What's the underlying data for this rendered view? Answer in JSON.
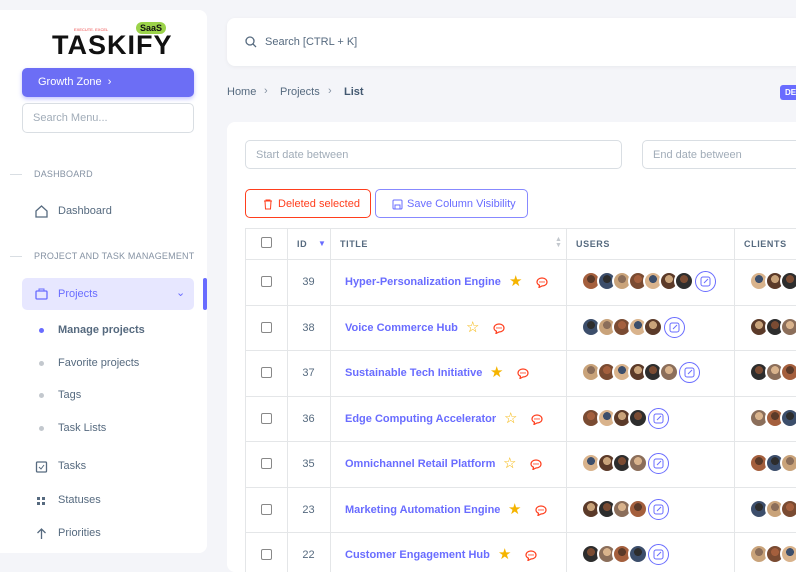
{
  "logo": {
    "name": "TASKIFY",
    "badge": "SaaS",
    "tagline": "EXECUTE. EXCEL"
  },
  "sidebar": {
    "workspace": "Growth Zone",
    "search_placeholder": "Search Menu...",
    "dashboard": {
      "title": "DASHBOARD",
      "item": "Dashboard"
    },
    "pm": {
      "title": "PROJECT AND TASK MANAGEMENT",
      "projects": "Projects",
      "children": [
        "Manage projects",
        "Favorite projects",
        "Tags",
        "Task Lists"
      ],
      "items": [
        "Tasks",
        "Statuses",
        "Priorities"
      ]
    }
  },
  "topbar": {
    "search": "Search [CTRL + K]"
  },
  "breadcrumb": {
    "items": [
      "Home",
      "Projects",
      "List"
    ],
    "badge": "DE"
  },
  "filters": {
    "start": "Start date between",
    "end": "End date between"
  },
  "buttons": {
    "delete": "Deleted selected",
    "save_columns": "Save Column Visibility"
  },
  "table": {
    "headers": [
      "ID",
      "TITLE",
      "USERS",
      "CLIENTS"
    ],
    "rows": [
      {
        "id": 39,
        "title": "Hyper-Personalization Engine",
        "starred": true,
        "users": 7,
        "clients": 3
      },
      {
        "id": 38,
        "title": "Voice Commerce Hub",
        "starred": false,
        "users": 5,
        "clients": 3
      },
      {
        "id": 37,
        "title": "Sustainable Tech Initiative",
        "starred": true,
        "users": 6,
        "clients": 3
      },
      {
        "id": 36,
        "title": "Edge Computing Accelerator",
        "starred": false,
        "users": 4,
        "clients": 3
      },
      {
        "id": 35,
        "title": "Omnichannel Retail Platform",
        "starred": false,
        "users": 4,
        "clients": 3
      },
      {
        "id": 23,
        "title": "Marketing Automation Engine",
        "starred": true,
        "users": 4,
        "clients": 3
      },
      {
        "id": 22,
        "title": "Customer Engagement Hub",
        "starred": true,
        "users": 4,
        "clients": 3
      }
    ]
  }
}
